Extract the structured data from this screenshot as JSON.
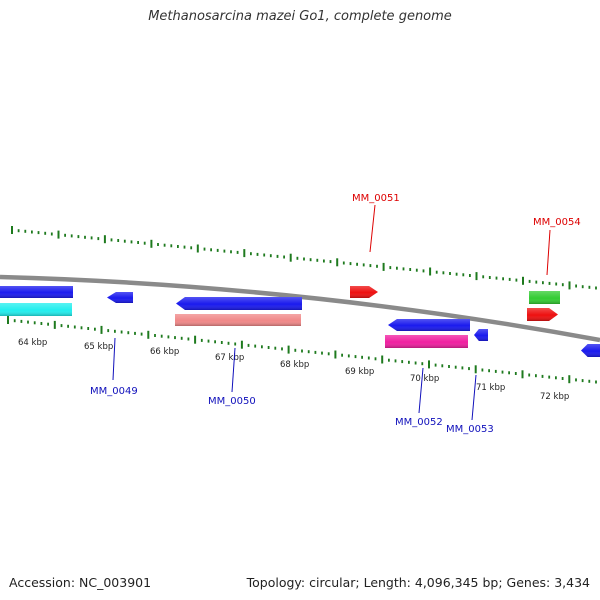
{
  "title": "Methanosarcina mazei Go1, complete genome",
  "footer": {
    "accession": "Accession: NC_003901",
    "summary": "Topology: circular; Length: 4,096,345 bp; Genes: 3,434"
  },
  "colors": {
    "backbone": "#8a8a8a",
    "tick": "#1e7a1e",
    "forward_label": "#dd0000",
    "reverse_label": "#1010bb",
    "blue_gene": "#1a1aee",
    "red_gene": "#ee1010",
    "green_gene": "#33cc33",
    "cyan_gene": "#22eeee",
    "salmon_gene": "#f08888",
    "magenta_gene": "#f01fa0"
  },
  "scale": {
    "labels": [
      "64 kbp",
      "65 kbp",
      "66 kbp",
      "67 kbp",
      "68 kbp",
      "69 kbp",
      "70 kbp",
      "71 kbp",
      "72 kbp"
    ]
  },
  "genes": [
    {
      "id": "gene-unlabeled-1",
      "label": "",
      "strand": "reverse",
      "color": "blue_gene"
    },
    {
      "id": "gene-unlabeled-2",
      "label": "",
      "strand": "reverse",
      "color": "cyan_gene"
    },
    {
      "id": "gene-mm0049",
      "label": "MM_0049",
      "strand": "reverse",
      "color": "blue_gene"
    },
    {
      "id": "gene-mm0050",
      "label": "MM_0050",
      "strand": "reverse",
      "color": "blue_gene"
    },
    {
      "id": "gene-mm0050-b",
      "label": "",
      "strand": "reverse",
      "color": "salmon_gene"
    },
    {
      "id": "gene-mm0051",
      "label": "MM_0051",
      "strand": "forward",
      "color": "red_gene"
    },
    {
      "id": "gene-mm0052",
      "label": "MM_0052",
      "strand": "reverse",
      "color": "blue_gene"
    },
    {
      "id": "gene-mm0052-b",
      "label": "",
      "strand": "reverse",
      "color": "magenta_gene"
    },
    {
      "id": "gene-mm0053",
      "label": "MM_0053",
      "strand": "reverse",
      "color": "blue_gene"
    },
    {
      "id": "gene-mm0054",
      "label": "MM_0054",
      "strand": "forward",
      "color": "green_gene"
    },
    {
      "id": "gene-mm0054-b",
      "label": "",
      "strand": "forward",
      "color": "red_gene"
    },
    {
      "id": "gene-unlabeled-3",
      "label": "",
      "strand": "reverse",
      "color": "blue_gene"
    }
  ]
}
